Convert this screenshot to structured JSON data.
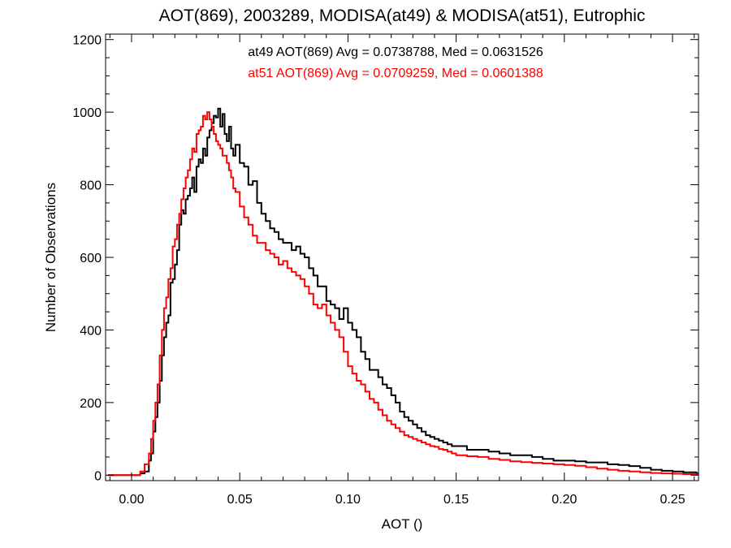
{
  "chart_data": {
    "type": "line",
    "title": "AOT(869), 2003289, MODISA(at49) & MODISA(at51), Eutrophic",
    "xlabel": "AOT ()",
    "ylabel": "Number of Observations",
    "xlim": [
      -0.012,
      0.262
    ],
    "ylim": [
      -15,
      1215
    ],
    "x_ticks": [
      "0.00",
      "0.05",
      "0.10",
      "0.15",
      "0.20",
      "0.25"
    ],
    "y_ticks": [
      "0",
      "200",
      "400",
      "600",
      "800",
      "1000",
      "1200"
    ],
    "grid": false,
    "step_style": "histogram",
    "annotations": [
      {
        "text": "at49 AOT(869) Avg = 0.0738788, Med = 0.0631526",
        "color": "#000000"
      },
      {
        "text": "at51 AOT(869) Avg = 0.0709259, Med = 0.0601388",
        "color": "#ff0000"
      }
    ],
    "x": [
      -0.011,
      0.0,
      0.004,
      0.006,
      0.008,
      0.009,
      0.01,
      0.011,
      0.012,
      0.013,
      0.014,
      0.015,
      0.016,
      0.017,
      0.018,
      0.019,
      0.02,
      0.021,
      0.022,
      0.023,
      0.024,
      0.025,
      0.026,
      0.027,
      0.028,
      0.029,
      0.03,
      0.031,
      0.032,
      0.033,
      0.034,
      0.035,
      0.036,
      0.037,
      0.038,
      0.039,
      0.04,
      0.041,
      0.042,
      0.043,
      0.044,
      0.045,
      0.046,
      0.047,
      0.048,
      0.05,
      0.052,
      0.054,
      0.056,
      0.058,
      0.06,
      0.062,
      0.064,
      0.066,
      0.068,
      0.07,
      0.072,
      0.074,
      0.076,
      0.078,
      0.08,
      0.082,
      0.084,
      0.086,
      0.088,
      0.09,
      0.092,
      0.094,
      0.096,
      0.098,
      0.1,
      0.102,
      0.104,
      0.106,
      0.108,
      0.11,
      0.112,
      0.114,
      0.116,
      0.118,
      0.12,
      0.122,
      0.124,
      0.126,
      0.128,
      0.13,
      0.132,
      0.134,
      0.136,
      0.138,
      0.14,
      0.142,
      0.144,
      0.146,
      0.148,
      0.15,
      0.155,
      0.16,
      0.165,
      0.17,
      0.175,
      0.18,
      0.185,
      0.19,
      0.195,
      0.2,
      0.205,
      0.21,
      0.215,
      0.22,
      0.225,
      0.23,
      0.235,
      0.24,
      0.245,
      0.25,
      0.255,
      0.261
    ],
    "series": [
      {
        "name": "at49",
        "color": "#000000",
        "values": [
          0,
          0,
          5,
          10,
          40,
          60,
          120,
          160,
          200,
          260,
          330,
          380,
          420,
          440,
          530,
          540,
          580,
          620,
          690,
          730,
          720,
          760,
          770,
          790,
          820,
          780,
          850,
          870,
          860,
          900,
          880,
          930,
          950,
          970,
          990,
          985,
          1010,
          960,
          995,
          940,
          920,
          960,
          900,
          880,
          910,
          860,
          850,
          800,
          810,
          750,
          720,
          700,
          680,
          670,
          650,
          640,
          640,
          620,
          630,
          610,
          600,
          570,
          550,
          520,
          520,
          480,
          470,
          460,
          430,
          460,
          420,
          400,
          380,
          340,
          320,
          290,
          290,
          270,
          250,
          240,
          220,
          200,
          175,
          160,
          150,
          140,
          130,
          120,
          110,
          105,
          100,
          95,
          90,
          85,
          80,
          80,
          70,
          70,
          65,
          60,
          55,
          55,
          50,
          45,
          40,
          40,
          38,
          35,
          35,
          30,
          28,
          25,
          20,
          15,
          12,
          10,
          8,
          5
        ]
      },
      {
        "name": "at51",
        "color": "#ff0000",
        "values": [
          0,
          0,
          10,
          30,
          60,
          100,
          150,
          200,
          250,
          330,
          400,
          460,
          490,
          540,
          570,
          630,
          650,
          690,
          720,
          760,
          790,
          820,
          840,
          870,
          900,
          890,
          940,
          950,
          960,
          990,
          980,
          1000,
          980,
          960,
          940,
          920,
          910,
          900,
          880,
          880,
          860,
          840,
          820,
          790,
          780,
          740,
          710,
          690,
          660,
          640,
          640,
          620,
          610,
          600,
          580,
          590,
          570,
          560,
          550,
          540,
          520,
          500,
          470,
          460,
          470,
          440,
          420,
          400,
          380,
          340,
          300,
          280,
          260,
          250,
          230,
          210,
          200,
          180,
          165,
          150,
          140,
          130,
          120,
          110,
          105,
          100,
          95,
          90,
          85,
          80,
          78,
          72,
          70,
          65,
          60,
          55,
          52,
          50,
          45,
          42,
          38,
          36,
          34,
          32,
          30,
          28,
          26,
          22,
          18,
          15,
          12,
          10,
          8,
          6,
          5,
          4,
          3,
          2
        ]
      }
    ]
  }
}
